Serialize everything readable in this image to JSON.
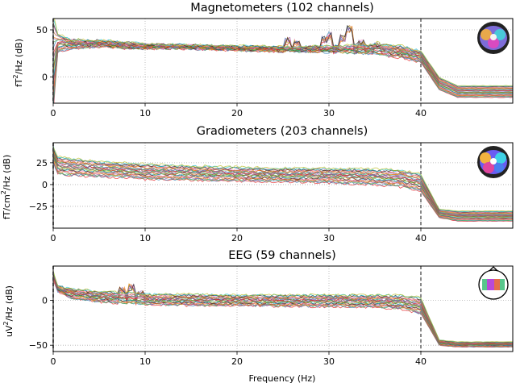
{
  "chart_data": [
    {
      "type": "line",
      "title": "Magnetometers (102 channels)",
      "ylabel_main": "fT",
      "ylabel_sup": "2",
      "ylabel_rest": "/Hz (dB)",
      "xlabel": "",
      "xlim": [
        0,
        50
      ],
      "ylim": [
        -28,
        62
      ],
      "xticks": [
        0,
        10,
        20,
        30,
        40
      ],
      "yticks": [
        0,
        50
      ],
      "grid": true,
      "highpass_hz": 0,
      "lowpass_hz": 40,
      "channel_count": 102,
      "band_min_db": [
        -40,
        26,
        30,
        32,
        30,
        30,
        30,
        28,
        27,
        26,
        24,
        20,
        15,
        -14,
        -22,
        -22
      ],
      "band_max_db": [
        70,
        46,
        40,
        39,
        37,
        35,
        34,
        33,
        32,
        33,
        35,
        33,
        28,
        0,
        -9,
        -9
      ],
      "peaks_hz": [
        25.5,
        26.5,
        29.5,
        30.2,
        31.5,
        32.3,
        33.5,
        35.2
      ],
      "peaks_db": [
        42,
        40,
        44,
        48,
        45,
        55,
        40,
        38
      ]
    },
    {
      "type": "line",
      "title": "Gradiometers (203 channels)",
      "ylabel_main": "fT/cm",
      "ylabel_sup": "2",
      "ylabel_rest": "/Hz (dB)",
      "xlabel": "",
      "xlim": [
        0,
        50
      ],
      "ylim": [
        -50,
        48
      ],
      "xticks": [
        0,
        10,
        20,
        30,
        40
      ],
      "yticks": [
        -25,
        0,
        25
      ],
      "grid": true,
      "highpass_hz": 0,
      "lowpass_hz": 40,
      "channel_count": 203,
      "band_min_db": [
        25,
        12,
        10,
        9,
        8,
        6,
        5,
        4,
        3,
        2,
        0,
        -3,
        -8,
        -38,
        -42,
        -42
      ],
      "band_max_db": [
        45,
        32,
        30,
        27,
        25,
        24,
        22,
        20,
        19,
        19,
        18,
        17,
        12,
        -28,
        -30,
        -30
      ]
    },
    {
      "type": "line",
      "title": "EEG (59 channels)",
      "ylabel_main": "uV",
      "ylabel_sup": "2",
      "ylabel_rest": "/Hz (dB)",
      "xlabel": "Frequency (Hz)",
      "xlim": [
        0,
        50
      ],
      "ylim": [
        -57,
        38
      ],
      "xticks": [
        0,
        10,
        20,
        30,
        40
      ],
      "yticks": [
        -50,
        0
      ],
      "grid": true,
      "highpass_hz": 0,
      "lowpass_hz": 40,
      "channel_count": 59,
      "band_min_db": [
        22,
        10,
        2,
        -2,
        -4,
        -5,
        -6,
        -6,
        -7,
        -7,
        -8,
        -10,
        -15,
        -50,
        -52,
        -52
      ],
      "band_max_db": [
        32,
        16,
        13,
        10,
        9,
        7,
        7,
        6,
        6,
        6,
        6,
        6,
        3,
        -44,
        -46,
        -46
      ],
      "peaks_hz": [
        7.5,
        8.5,
        9.5
      ],
      "peaks_db": [
        15,
        18,
        12
      ]
    }
  ]
}
